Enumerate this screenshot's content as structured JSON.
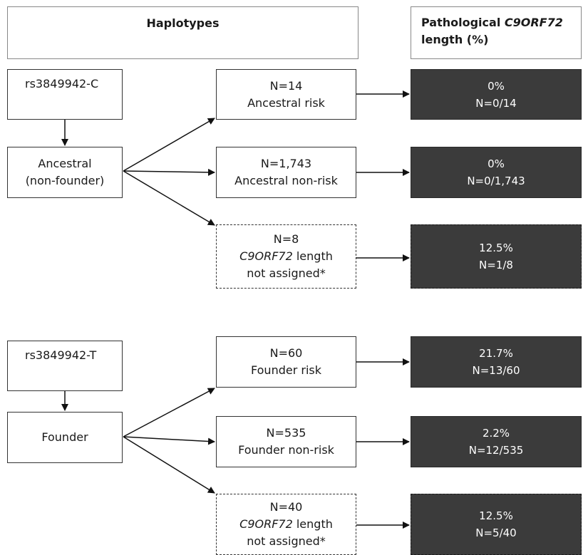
{
  "headers": {
    "haplotypes": "Haplotypes",
    "pathological_prefix": "Pathological ",
    "pathological_gene": "C9ORF72",
    "pathological_suffix": "length (%)"
  },
  "sections": [
    {
      "snp": "rs3849942-C",
      "group": [
        "Ancestral",
        "(non-founder)"
      ],
      "rows": [
        {
          "n": "N=14",
          "label": "Ancestral risk",
          "percent": "0%",
          "ratio": "N=0/14"
        },
        {
          "n": "N=1,743",
          "label": "Ancestral non-risk",
          "percent": "0%",
          "ratio": "N=0/1,743"
        },
        {
          "n": "N=8",
          "gene": "C9ORF72",
          "label_rest": " length",
          "label2": "not assigned*",
          "percent": "12.5%",
          "ratio": "N=1/8"
        }
      ]
    },
    {
      "snp": "rs3849942-T",
      "group": [
        "Founder"
      ],
      "rows": [
        {
          "n": "N=60",
          "label": "Founder risk",
          "percent": "21.7%",
          "ratio": "N=13/60"
        },
        {
          "n": "N=535",
          "label": "Founder non-risk",
          "percent": "2.2%",
          "ratio": "N=12/535"
        },
        {
          "n": "N=40",
          "gene": "C9ORF72",
          "label_rest": " length",
          "label2": "not assigned*",
          "percent": "12.5%",
          "ratio": "N=5/40"
        }
      ]
    }
  ]
}
